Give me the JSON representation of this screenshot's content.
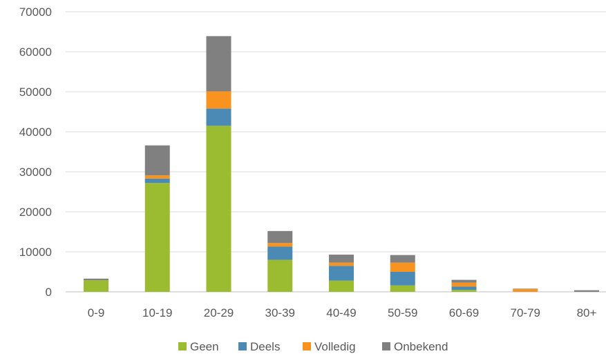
{
  "chart_data": {
    "type": "bar",
    "stacked": true,
    "categories": [
      "0-9",
      "10-19",
      "20-29",
      "30-39",
      "40-49",
      "50-59",
      "60-69",
      "70-79",
      "80+"
    ],
    "series": [
      {
        "name": "Geen",
        "color": "#9bbb31",
        "values": [
          2900,
          27200,
          41500,
          8000,
          2800,
          1600,
          500,
          0,
          0
        ]
      },
      {
        "name": "Deels",
        "color": "#4a8ab5",
        "values": [
          0,
          1100,
          4300,
          3300,
          3700,
          3400,
          800,
          0,
          0
        ]
      },
      {
        "name": "Volledig",
        "color": "#f7931e",
        "values": [
          0,
          800,
          4300,
          900,
          800,
          2300,
          1000,
          700,
          0
        ]
      },
      {
        "name": "Onbekend",
        "color": "#808080",
        "values": [
          400,
          7500,
          13800,
          3000,
          2000,
          1900,
          700,
          100,
          400
        ]
      }
    ],
    "y_ticks": [
      "0",
      "10000",
      "20000",
      "30000",
      "40000",
      "50000",
      "60000",
      "70000"
    ],
    "ylim": [
      0,
      70000
    ],
    "grid": true,
    "legend_position": "bottom",
    "title": "",
    "xlabel": "",
    "ylabel": ""
  }
}
